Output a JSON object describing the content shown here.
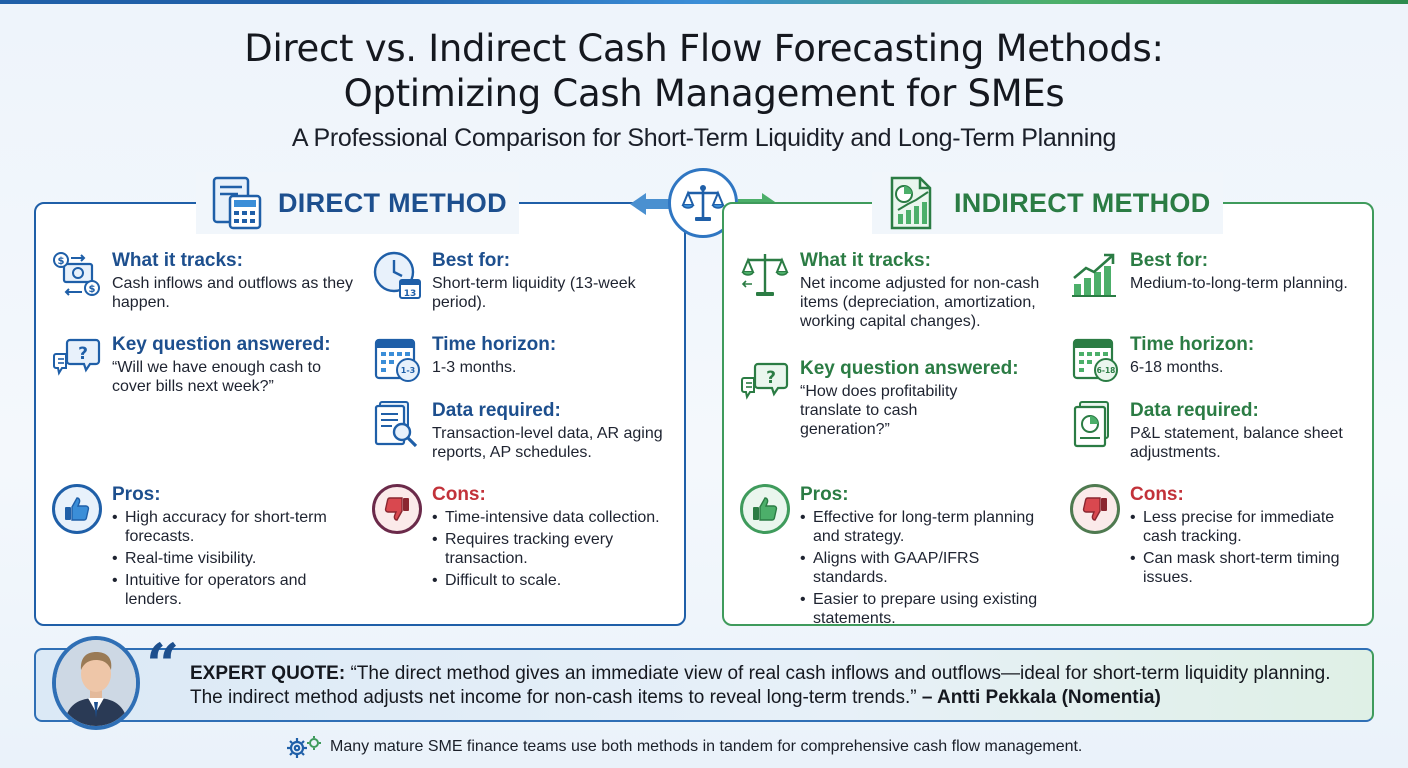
{
  "title_line1": "Direct vs. Indirect Cash Flow Forecasting Methods:",
  "title_line2": "Optimizing Cash Management for SMEs",
  "subtitle": "A Professional Comparison for Short-Term Liquidity and Long-Term Planning",
  "colors": {
    "direct": "#1d4f8e",
    "indirect": "#2b7c44",
    "cons": "#c2323a"
  },
  "direct": {
    "heading": "DIRECT METHOD",
    "tracks": {
      "label": "What it tracks:",
      "text": "Cash inflows and outflows as they happen."
    },
    "question": {
      "label": "Key question answered:",
      "text": "“Will we have enough cash to cover bills next week?”"
    },
    "best_for": {
      "label": "Best for:",
      "text": "Short-term liquidity (13-week period)."
    },
    "horizon": {
      "label": "Time horizon:",
      "text": "1-3 months."
    },
    "data": {
      "label": "Data required:",
      "text": "Transaction-level data, AR aging reports, AP schedules."
    },
    "pros": {
      "label": "Pros:",
      "items": [
        "High accuracy for short-term forecasts.",
        "Real-time visibility.",
        "Intuitive for operators and lenders."
      ]
    },
    "cons": {
      "label": "Cons:",
      "items": [
        "Time-intensive data collection.",
        "Requires tracking every transaction.",
        "Difficult to scale."
      ]
    },
    "calendar_tag": "1-3",
    "calendar_day": "13"
  },
  "indirect": {
    "heading": "INDIRECT METHOD",
    "tracks": {
      "label": "What it tracks:",
      "text": "Net income adjusted for non-cash items (depreciation, amortization, working capital changes)."
    },
    "question": {
      "label": "Key question answered:",
      "text": "“How does profitability translate to cash generation?”"
    },
    "best_for": {
      "label": "Best for:",
      "text": "Medium-to-long-term planning."
    },
    "horizon": {
      "label": "Time horizon:",
      "text": "6-18 months."
    },
    "data": {
      "label": "Data required:",
      "text": "P&L statement, balance sheet adjustments."
    },
    "pros": {
      "label": "Pros:",
      "items": [
        "Effective for long-term planning and strategy.",
        "Aligns with GAAP/IFRS standards.",
        "Easier to prepare using existing statements."
      ]
    },
    "cons": {
      "label": "Cons:",
      "items": [
        "Less precise for immediate cash tracking.",
        "Can mask short-term timing issues."
      ]
    },
    "calendar_tag": "6-18"
  },
  "quote": {
    "lead": "EXPERT QUOTE:",
    "text": " “The direct method gives an immediate view of real cash inflows and outflows—ideal for short-term liquidity planning. The indirect method adjusts net income for non-cash items to reveal long-term trends.” ",
    "author": "– Antti Pekkala (Nomentia)"
  },
  "footer": "Many mature SME finance teams use both methods in tandem for comprehensive cash flow management."
}
